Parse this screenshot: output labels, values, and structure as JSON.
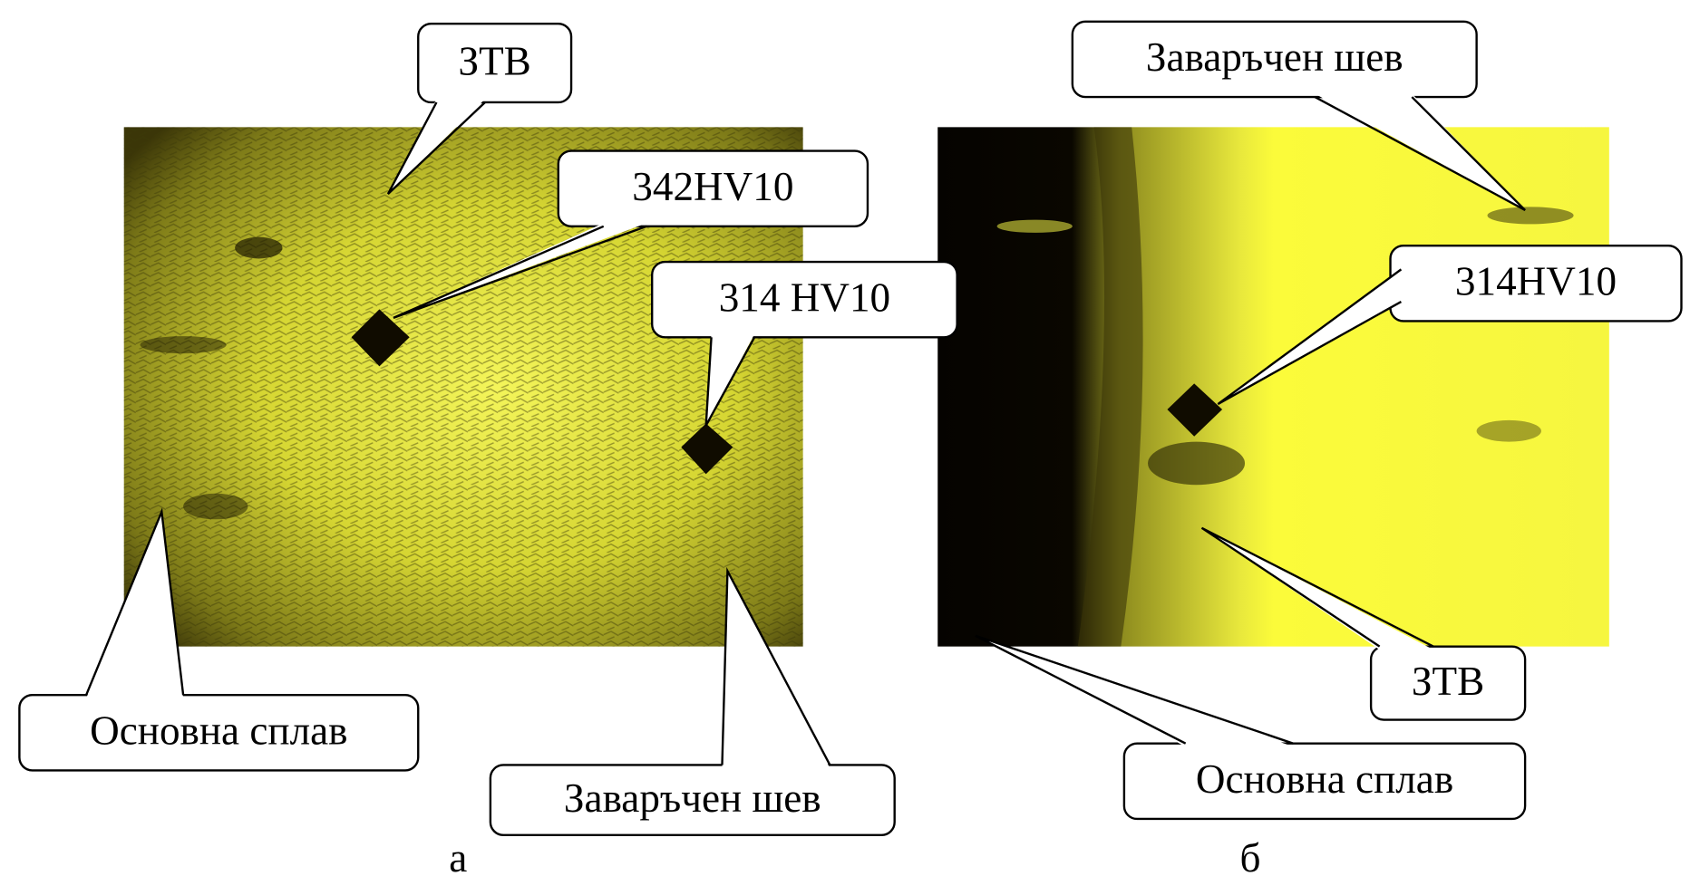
{
  "panels": [
    {
      "label": "а",
      "callouts": [
        "ЗТВ",
        "342HV10",
        "314 HV10",
        "Основна сплав",
        "Заваръчен шев"
      ]
    },
    {
      "label": "б",
      "callouts": [
        "Заваръчен шев",
        "314HV10",
        "ЗТВ",
        "Основна сплав"
      ]
    }
  ]
}
